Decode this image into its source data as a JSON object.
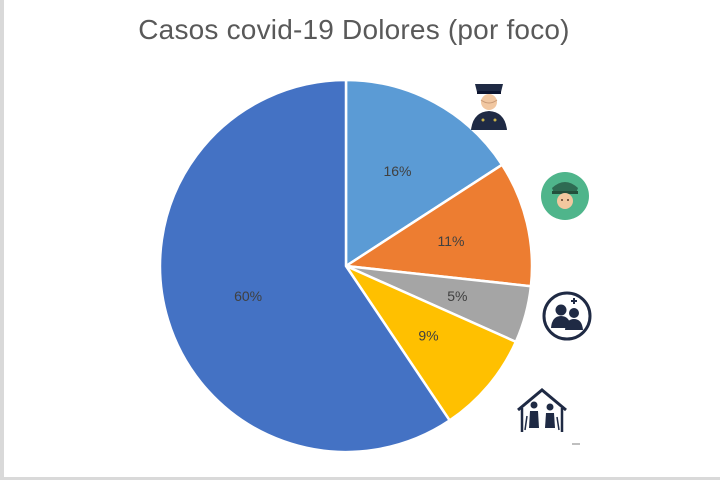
{
  "chart_data": {
    "type": "pie",
    "title": "Casos covid-19 Dolores (por foco)",
    "categories": [
      "",
      "",
      "",
      "",
      ""
    ],
    "values": [
      16,
      11,
      5,
      9,
      60
    ],
    "labels": [
      "16%",
      "11%",
      "5%",
      "9%",
      "60%"
    ],
    "colors": [
      "#5b9bd5",
      "#ed7d31",
      "#a5a5a5",
      "#ffc000",
      "#4472c4"
    ],
    "start_angle": "12 o'clock",
    "direction": "clockwise",
    "legend": "none",
    "icons": [
      "police-officer-icon",
      "security-guard-icon",
      "health-workers-icon",
      "elderly-home-icon"
    ]
  }
}
